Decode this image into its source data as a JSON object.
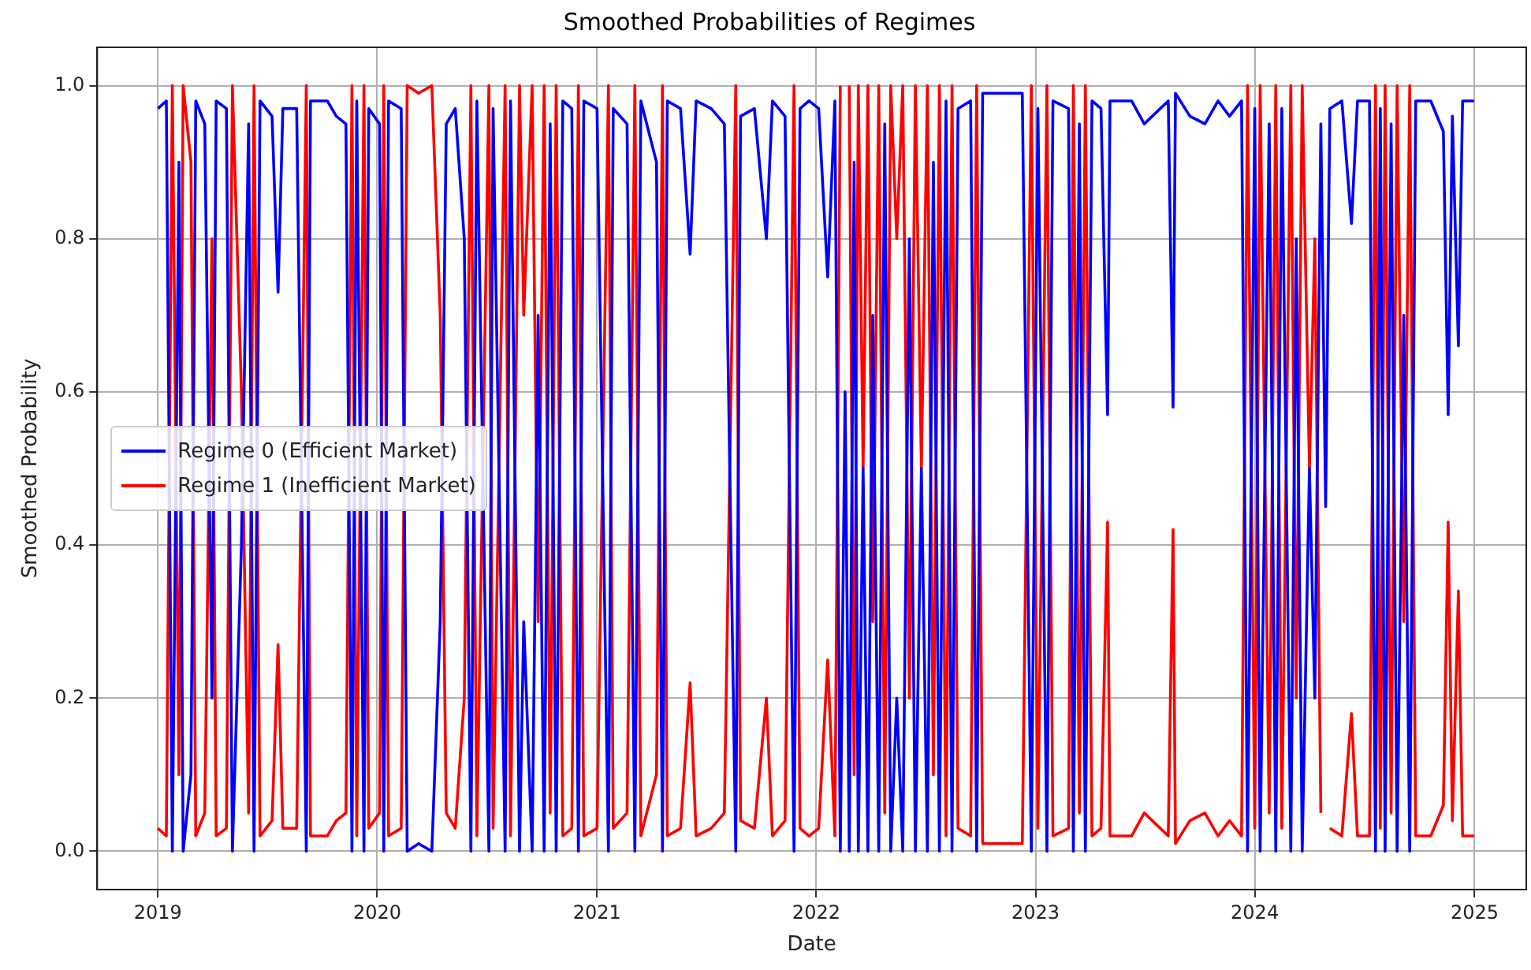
{
  "chart_data": {
    "type": "line",
    "title": "Smoothed Probabilities of Regimes",
    "xlabel": "Date",
    "ylabel": "Smoothed Probability",
    "x": [
      "2019-01-01",
      "2019-01-15",
      "2019-01-25",
      "2019-02-05",
      "2019-02-12",
      "2019-02-25",
      "2019-03-05",
      "2019-03-20",
      "2019-04-01",
      "2019-04-08",
      "2019-04-25",
      "2019-05-05",
      "2019-05-20",
      "2019-06-01",
      "2019-06-10",
      "2019-06-20",
      "2019-07-10",
      "2019-07-20",
      "2019-07-28",
      "2019-08-20",
      "2019-09-05",
      "2019-09-12",
      "2019-10-10",
      "2019-10-25",
      "2019-11-10",
      "2019-11-20",
      "2019-11-28",
      "2019-12-10",
      "2019-12-18",
      "2020-01-05",
      "2020-01-12",
      "2020-01-20",
      "2020-02-10",
      "2020-02-20",
      "2020-03-10",
      "2020-04-01",
      "2020-04-15",
      "2020-04-25",
      "2020-05-10",
      "2020-05-25",
      "2020-06-05",
      "2020-06-15",
      "2020-07-05",
      "2020-07-12",
      "2020-08-01",
      "2020-08-10",
      "2020-08-25",
      "2020-09-01",
      "2020-09-15",
      "2020-09-25",
      "2020-10-05",
      "2020-10-15",
      "2020-10-25",
      "2020-11-05",
      "2020-11-20",
      "2020-12-01",
      "2020-12-10",
      "2021-01-01",
      "2021-01-20",
      "2021-01-28",
      "2021-02-20",
      "2021-03-05",
      "2021-03-15",
      "2021-04-10",
      "2021-04-20",
      "2021-04-28",
      "2021-05-20",
      "2021-06-05",
      "2021-06-15",
      "2021-07-10",
      "2021-08-01",
      "2021-08-20",
      "2021-08-28",
      "2021-09-20",
      "2021-10-10",
      "2021-10-20",
      "2021-11-10",
      "2021-11-25",
      "2021-12-05",
      "2021-12-20",
      "2022-01-05",
      "2022-01-20",
      "2022-02-01",
      "2022-02-10",
      "2022-02-18",
      "2022-02-25",
      "2022-03-05",
      "2022-03-12",
      "2022-03-20",
      "2022-03-28",
      "2022-04-05",
      "2022-04-15",
      "2022-04-25",
      "2022-05-05",
      "2022-05-15",
      "2022-05-25",
      "2022-06-05",
      "2022-06-15",
      "2022-06-25",
      "2022-07-05",
      "2022-07-15",
      "2022-07-25",
      "2022-08-05",
      "2022-08-15",
      "2022-08-25",
      "2022-09-15",
      "2022-09-25",
      "2022-10-05",
      "2022-11-01",
      "2022-12-10",
      "2022-12-25",
      "2023-01-05",
      "2023-01-20",
      "2023-01-30",
      "2023-02-25",
      "2023-03-05",
      "2023-03-15",
      "2023-03-25",
      "2023-04-05",
      "2023-04-20",
      "2023-05-01",
      "2023-05-05",
      "2023-06-10",
      "2023-07-01",
      "2023-08-10",
      "2023-08-18",
      "2023-08-22",
      "2023-09-15",
      "2023-10-10",
      "2023-11-01",
      "2023-11-20",
      "2023-12-10",
      "2023-12-20",
      "2024-01-01",
      "2024-01-10",
      "2024-01-25",
      "2024-02-05",
      "2024-02-15",
      "2024-03-01",
      "2024-03-10",
      "2024-03-20",
      "2024-04-01",
      "2024-04-10",
      "2024-04-20",
      "2024-04-28",
      "2024-05-05",
      "2024-05-25",
      "2024-06-10",
      "2024-06-20",
      "2024-07-10",
      "2024-07-20",
      "2024-07-28",
      "2024-08-05",
      "2024-08-15",
      "2024-08-25",
      "2024-09-05",
      "2024-09-15",
      "2024-09-25",
      "2024-10-20",
      "2024-11-10",
      "2024-11-18",
      "2024-11-25",
      "2024-12-05",
      "2024-12-12",
      "2024-12-31"
    ],
    "series": [
      {
        "name": "Regime 0 (Efficient Market)",
        "color": "#0000ff",
        "values": [
          0.97,
          0.98,
          0.0,
          0.9,
          0.0,
          0.1,
          0.98,
          0.95,
          0.2,
          0.98,
          0.97,
          0.0,
          0.4,
          0.95,
          0.0,
          0.98,
          0.96,
          0.73,
          0.97,
          0.97,
          0.0,
          0.98,
          0.98,
          0.96,
          0.95,
          0.0,
          0.98,
          0.0,
          0.97,
          0.95,
          0.0,
          0.98,
          0.97,
          0.0,
          0.01,
          0.0,
          0.3,
          0.95,
          0.97,
          0.8,
          0.0,
          0.98,
          0.0,
          0.97,
          0.0,
          0.98,
          0.0,
          0.3,
          0.0,
          0.7,
          0.0,
          0.95,
          0.0,
          0.98,
          0.97,
          0.0,
          0.98,
          0.97,
          0.0,
          0.97,
          0.95,
          0.0,
          0.98,
          0.9,
          0.0,
          0.98,
          0.97,
          0.78,
          0.98,
          0.97,
          0.95,
          0.0,
          0.96,
          0.97,
          0.8,
          0.98,
          0.96,
          0.0,
          0.97,
          0.98,
          0.97,
          0.75,
          0.98,
          0.0,
          0.6,
          0.0,
          0.9,
          0.0,
          0.5,
          0.0,
          0.7,
          0.0,
          0.95,
          0.0,
          0.2,
          0.0,
          0.8,
          0.0,
          0.5,
          0.0,
          0.9,
          0.0,
          0.98,
          0.0,
          0.97,
          0.98,
          0.0,
          0.99,
          0.99,
          0.99,
          0.0,
          0.97,
          0.0,
          0.98,
          0.97,
          0.0,
          0.95,
          0.0,
          0.98,
          0.97,
          0.57,
          0.98,
          0.98,
          0.95,
          0.98,
          0.58,
          0.99,
          0.96,
          0.95,
          0.98,
          0.96,
          0.98,
          0.0,
          0.97,
          0.0,
          0.95,
          0.0,
          0.97,
          0.0,
          0.8,
          0.0,
          0.5,
          0.2,
          0.95,
          0.45,
          0.97,
          0.98,
          0.82,
          0.98,
          0.98,
          0.0,
          0.97,
          0.0,
          0.95,
          0.0,
          0.7,
          0.0,
          0.98,
          0.98,
          0.94,
          0.57,
          0.96,
          0.66,
          0.98,
          0.98
        ]
      },
      {
        "name": "Regime 1 (Inefficient Market)",
        "color": "#ff0000",
        "values": [
          0.03,
          0.02,
          1.0,
          0.1,
          1.0,
          0.9,
          0.02,
          0.05,
          0.8,
          0.02,
          0.03,
          1.0,
          0.6,
          0.05,
          1.0,
          0.02,
          0.04,
          0.27,
          0.03,
          0.03,
          1.0,
          0.02,
          0.02,
          0.04,
          0.05,
          1.0,
          0.02,
          1.0,
          0.03,
          0.05,
          1.0,
          0.02,
          0.03,
          1.0,
          0.99,
          1.0,
          0.7,
          0.05,
          0.03,
          0.2,
          1.0,
          0.02,
          1.0,
          0.03,
          1.0,
          0.02,
          1.0,
          0.7,
          1.0,
          0.3,
          1.0,
          0.05,
          1.0,
          0.02,
          0.03,
          1.0,
          0.02,
          0.03,
          1.0,
          0.03,
          0.05,
          1.0,
          0.02,
          0.1,
          1.0,
          0.02,
          0.03,
          0.22,
          0.02,
          0.03,
          0.05,
          1.0,
          0.04,
          0.03,
          0.2,
          0.02,
          0.04,
          1.0,
          0.03,
          0.02,
          0.03,
          0.25,
          0.02,
          1.0,
          null,
          1.0,
          0.1,
          1.0,
          0.5,
          1.0,
          0.3,
          1.0,
          0.05,
          1.0,
          0.8,
          1.0,
          0.2,
          1.0,
          0.5,
          1.0,
          0.1,
          1.0,
          0.02,
          1.0,
          0.03,
          0.02,
          1.0,
          0.01,
          0.01,
          0.01,
          1.0,
          0.03,
          1.0,
          0.02,
          0.03,
          1.0,
          0.05,
          1.0,
          0.02,
          0.03,
          0.43,
          0.02,
          0.02,
          0.05,
          0.02,
          0.42,
          0.01,
          0.04,
          0.05,
          0.02,
          0.04,
          0.02,
          1.0,
          0.03,
          1.0,
          0.05,
          1.0,
          0.03,
          1.0,
          0.2,
          1.0,
          0.5,
          0.8,
          0.05,
          null,
          0.03,
          0.02,
          0.18,
          0.02,
          0.02,
          1.0,
          0.03,
          1.0,
          0.05,
          1.0,
          0.3,
          1.0,
          0.02,
          0.02,
          0.06,
          0.43,
          0.04,
          0.34,
          0.02,
          0.02
        ]
      }
    ],
    "xlim": [
      "2018-09-22",
      "2025-03-28"
    ],
    "xticks": [
      "2019",
      "2020",
      "2021",
      "2022",
      "2023",
      "2024",
      "2025"
    ],
    "ylim": [
      -0.05,
      1.05
    ],
    "yticks": [
      {
        "value": 0,
        "label": "0.0"
      },
      {
        "value": 0.2,
        "label": "0.2"
      },
      {
        "value": 0.4,
        "label": "0.4"
      },
      {
        "value": 0.6,
        "label": "0.6"
      },
      {
        "value": 0.8,
        "label": "0.8"
      },
      {
        "value": 1,
        "label": "1.0"
      }
    ],
    "grid": true,
    "legend": "center left",
    "marker": "none",
    "line_style": "solid"
  }
}
